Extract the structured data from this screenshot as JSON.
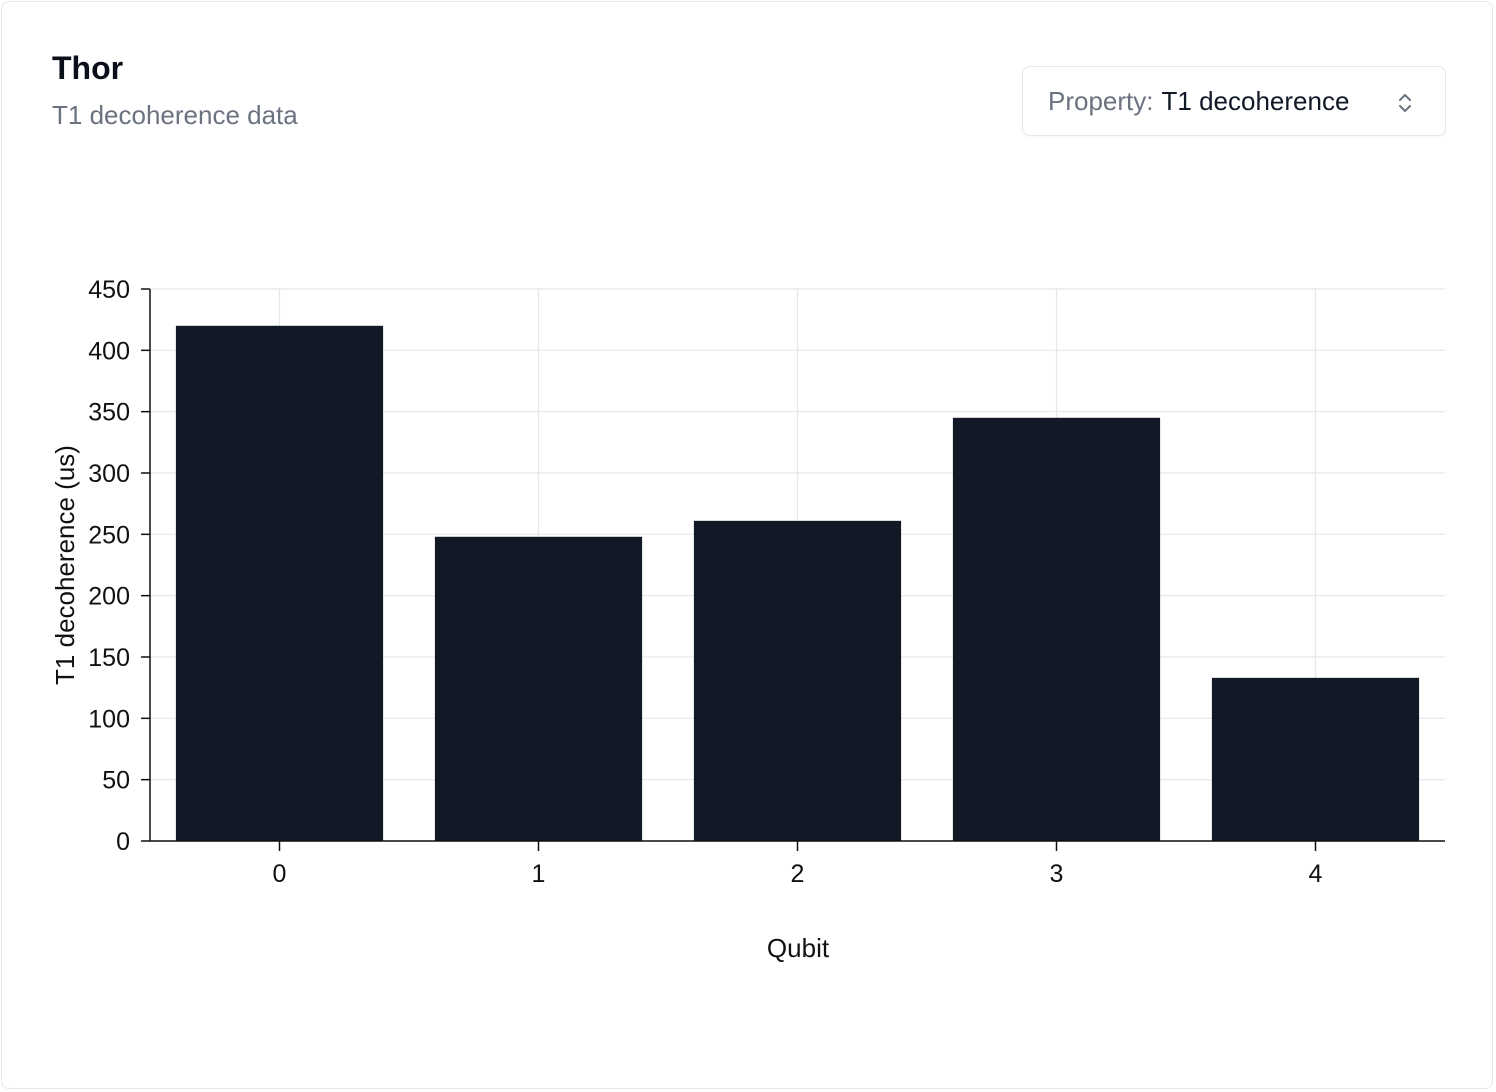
{
  "header": {
    "title": "Thor",
    "subtitle": "T1 decoherence data"
  },
  "property_select": {
    "prefix": "Property:",
    "value": "T1 decoherence",
    "icon": "chevron-up-down-icon"
  },
  "colors": {
    "bar": "#131826",
    "grid": "#e5e7eb",
    "axis": "#111111"
  },
  "chart_data": {
    "type": "bar",
    "categories": [
      "0",
      "1",
      "2",
      "3",
      "4"
    ],
    "values": [
      420,
      248,
      261,
      345,
      133
    ],
    "xlabel": "Qubit",
    "ylabel": "T1 decoherence (us)",
    "ylim": [
      0,
      450
    ],
    "yticks": [
      0,
      50,
      100,
      150,
      200,
      250,
      300,
      350,
      400,
      450
    ],
    "grid": true,
    "legend": "none"
  }
}
